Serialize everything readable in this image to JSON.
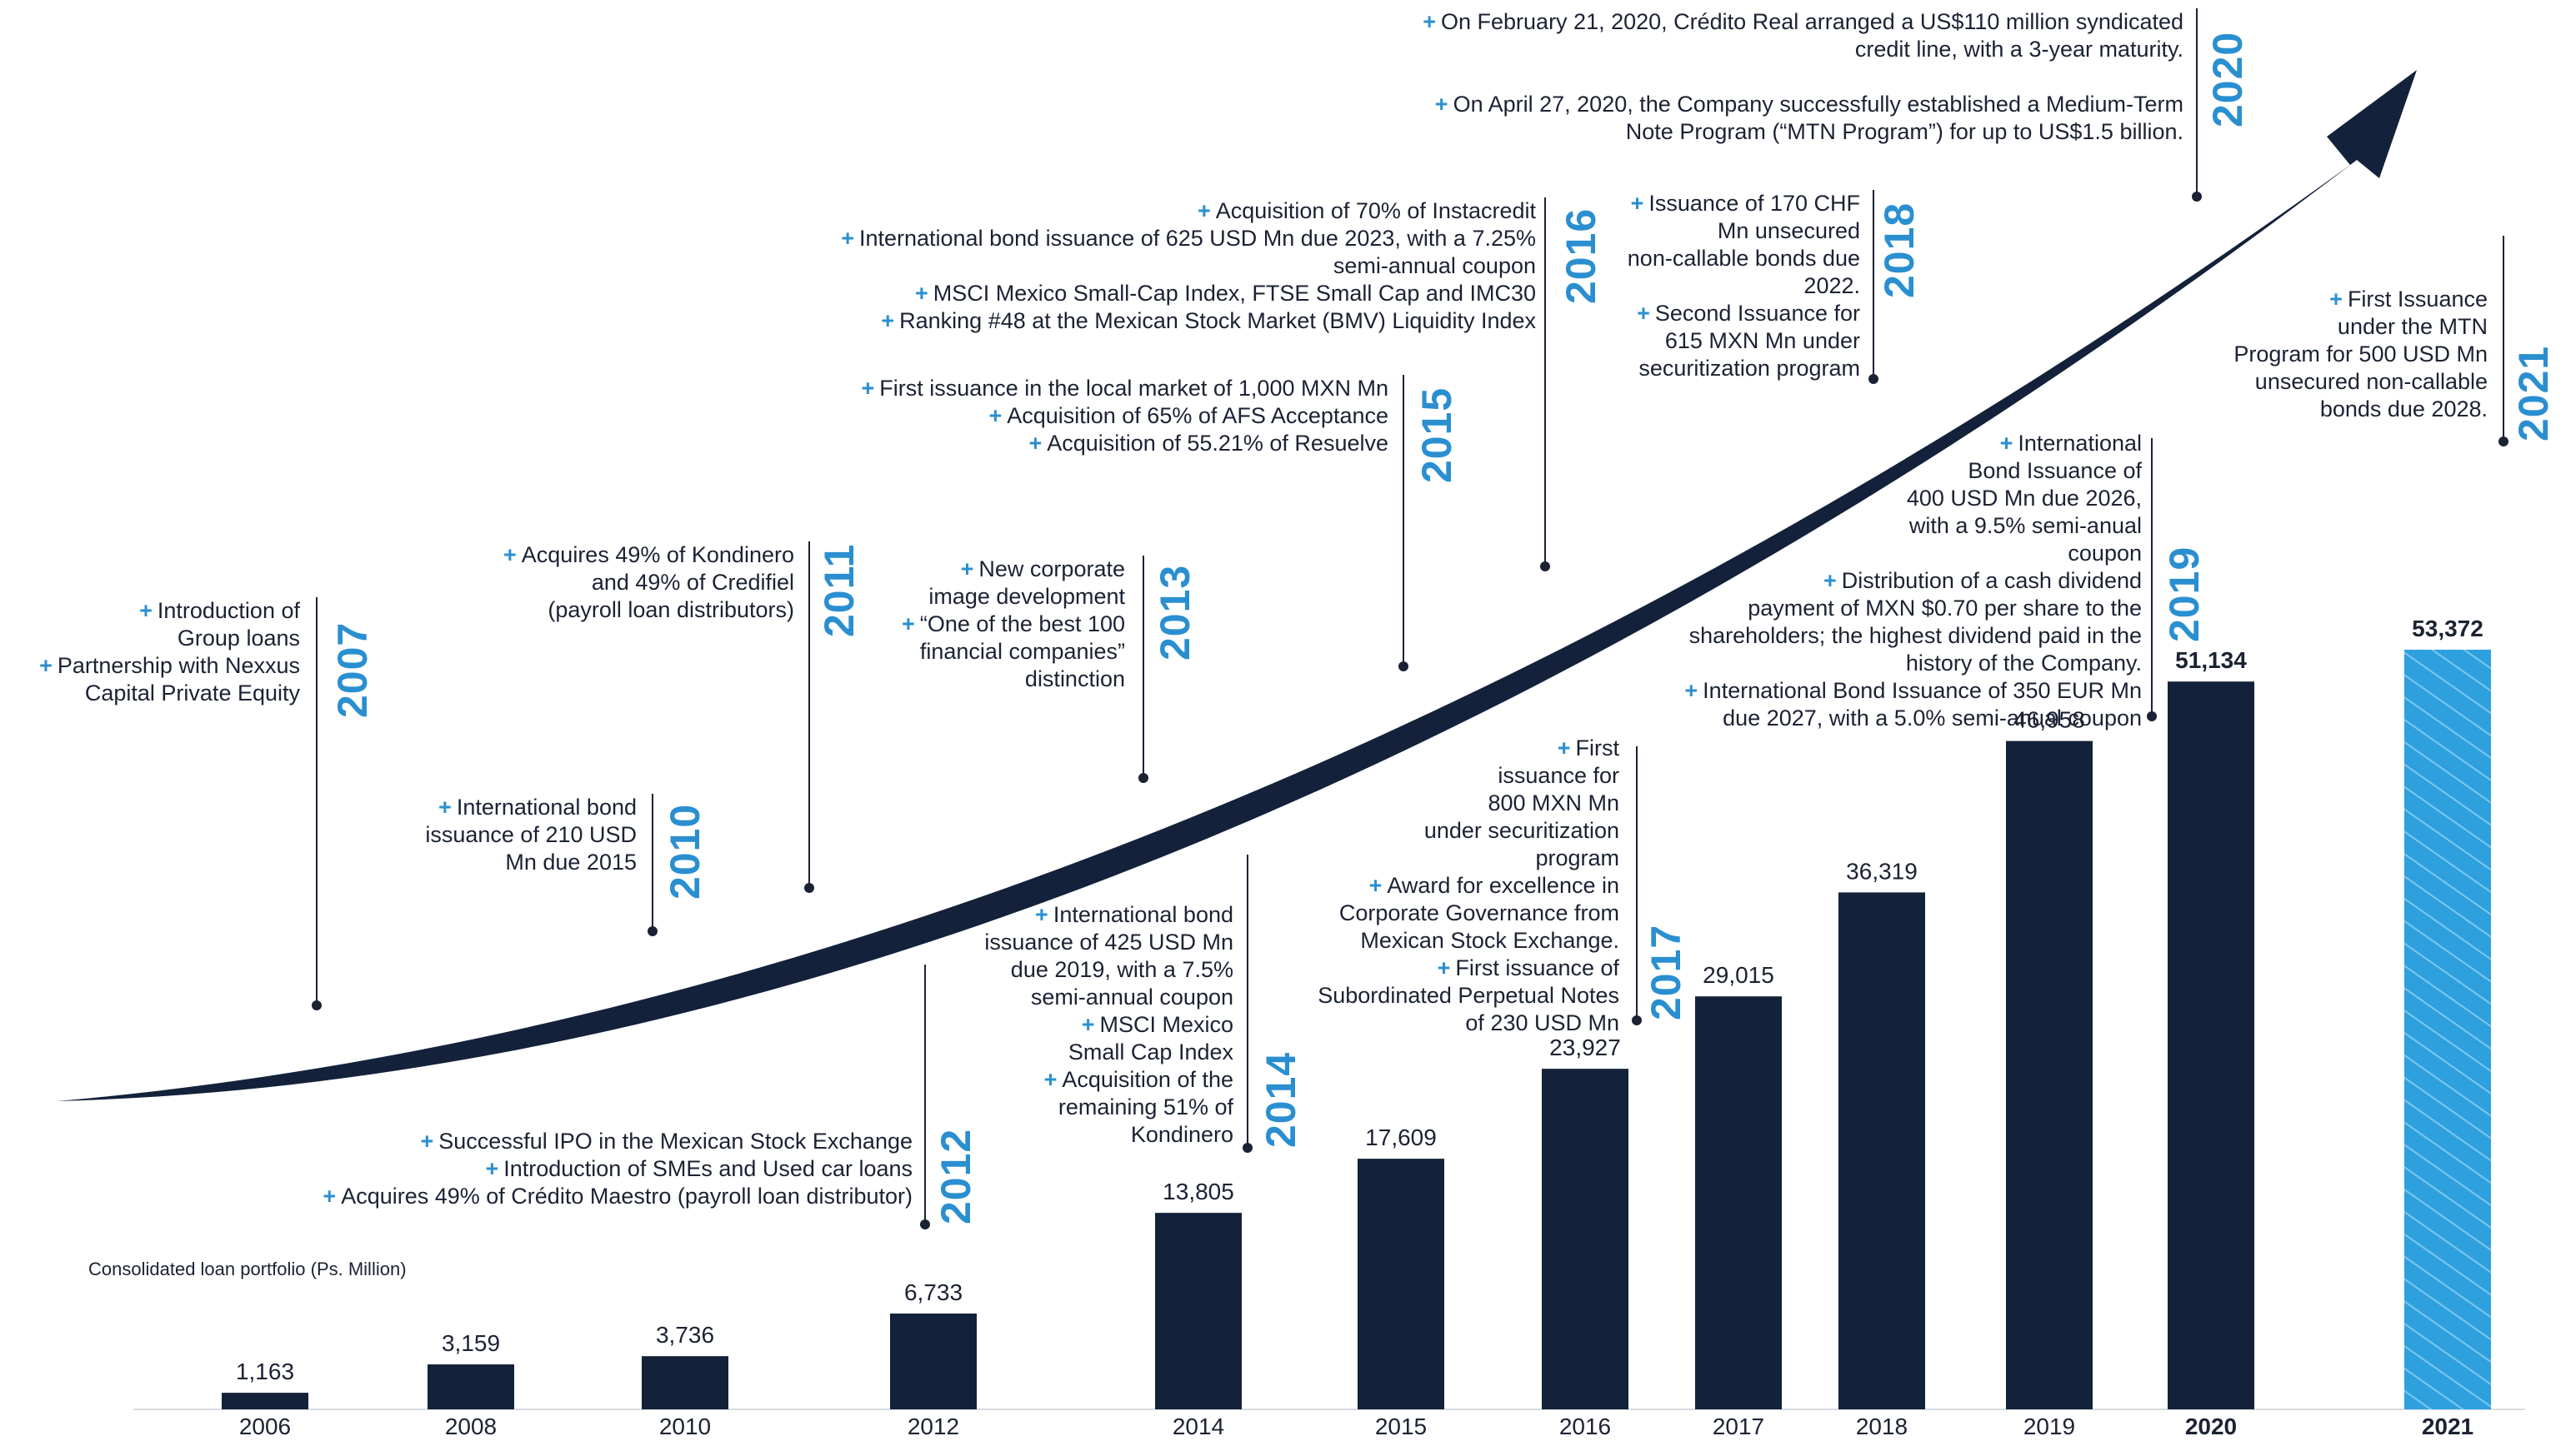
{
  "chart_data": {
    "type": "bar",
    "title": "Consolidated loan portfolio (Ps. Million)",
    "categories": [
      "2006",
      "2008",
      "2010",
      "2012",
      "2014",
      "2015",
      "2016",
      "2017",
      "2018",
      "2019",
      "2020",
      "2021"
    ],
    "values": [
      1163,
      3159,
      3736,
      6733,
      13805,
      17609,
      23927,
      29015,
      36319,
      46958,
      51134,
      53372
    ],
    "value_labels": [
      "1,163",
      "3,159",
      "3,736",
      "6,733",
      "13,805",
      "17,609",
      "23,927",
      "29,015",
      "36,319",
      "46,958",
      "51,134",
      "53,372"
    ],
    "highlighted": [
      "2020",
      "2021"
    ],
    "ylim": [
      0,
      53372
    ],
    "colors": {
      "bar": "#13213a",
      "bar_2021": "#2ea0de",
      "accent": "#2a8fd0"
    }
  },
  "milestones": [
    {
      "year": "2007",
      "items": [
        [
          "Introduction of",
          "Group loans"
        ],
        [
          "Partnership with Nexxus",
          "Capital Private Equity"
        ]
      ]
    },
    {
      "year": "2010",
      "items": [
        [
          "International bond",
          "issuance of 210 USD",
          "Mn due 2015"
        ]
      ]
    },
    {
      "year": "2011",
      "items": [
        [
          "Acquires 49% of Kondinero",
          "and 49% of Credifiel",
          "(payroll loan distributors)"
        ]
      ]
    },
    {
      "year": "2012",
      "items": [
        [
          "Successful IPO in the Mexican Stock Exchange"
        ],
        [
          "Introduction of SMEs and Used car loans"
        ],
        [
          "Acquires 49% of Crédito Maestro (payroll loan distributor)"
        ]
      ]
    },
    {
      "year": "2013",
      "items": [
        [
          "New corporate",
          "image development"
        ],
        [
          "“One of the best 100",
          "financial companies”",
          "distinction"
        ]
      ]
    },
    {
      "year": "2014",
      "items": [
        [
          "International bond",
          "issuance of 425 USD Mn",
          "due 2019, with a 7.5%",
          "semi-annual coupon"
        ],
        [
          "MSCI Mexico",
          "Small Cap Index"
        ],
        [
          "Acquisition of the",
          "remaining 51% of",
          "Kondinero"
        ]
      ]
    },
    {
      "year": "2015",
      "items": [
        [
          "First issuance in the local market of 1,000 MXN Mn"
        ],
        [
          "Acquisition of 65% of AFS Acceptance"
        ],
        [
          "Acquisition of 55.21% of Resuelve"
        ]
      ]
    },
    {
      "year": "2016",
      "items": [
        [
          "Acquisition of 70% of Instacredit"
        ],
        [
          "International bond issuance of 625 USD Mn due 2023, with a 7.25%",
          "semi-annual coupon"
        ],
        [
          "MSCI Mexico Small-Cap Index, FTSE Small Cap and IMC30"
        ],
        [
          "Ranking #48 at the Mexican Stock Market (BMV) Liquidity Index"
        ]
      ]
    },
    {
      "year": "2017",
      "items": [
        [
          "First",
          "issuance for",
          "800 MXN Mn",
          "under securitization",
          "program"
        ],
        [
          "Award for excellence in",
          "Corporate Governance from",
          "Mexican Stock Exchange."
        ],
        [
          "First issuance of",
          "Subordinated Perpetual Notes",
          "of 230 USD Mn"
        ]
      ]
    },
    {
      "year": "2018",
      "items": [
        [
          "Issuance of 170 CHF",
          "Mn unsecured",
          "non-callable bonds due",
          "2022."
        ],
        [
          "Second Issuance for",
          "615 MXN Mn under",
          "securitization program"
        ]
      ]
    },
    {
      "year": "2019",
      "items": [
        [
          "International",
          "Bond Issuance of",
          "400 USD Mn due 2026,",
          "with  a 9.5% semi-anual",
          "coupon"
        ],
        [
          "Distribution of a cash dividend",
          "payment of MXN $0.70 per share to the",
          "shareholders; the highest dividend paid in the",
          "history of the Company."
        ],
        [
          "International Bond Issuance of 350 EUR Mn",
          "due 2027, with  a 5.0% semi-anual coupon"
        ]
      ]
    },
    {
      "year": "2020",
      "items": [
        [
          "On February 21, 2020, Crédito Real arranged a US$110 million syndicated",
          "credit line, with a 3-year maturity."
        ],
        [
          "On April 27, 2020, the Company successfully established a Medium-Term",
          "Note Program (“MTN Program”) for up to US$1.5 billion."
        ]
      ]
    },
    {
      "year": "2021",
      "items": [
        [
          "First Issuance",
          "under the MTN",
          "Program for 500 USD Mn",
          "unsecured non-callable",
          "bonds due 2028."
        ]
      ]
    }
  ]
}
